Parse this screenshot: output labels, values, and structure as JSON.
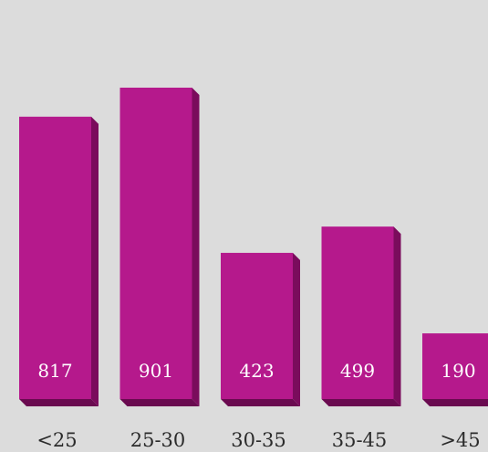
{
  "colors": {
    "background": "#dcdcdc",
    "bar_front": "#b5198c",
    "bar_side": "#7a0c5c",
    "bar_bottom": "#6a0a50",
    "value_text": "#ffffff",
    "label_text": "#2b2b2b"
  },
  "chart_data": {
    "type": "bar",
    "categories": [
      "<25",
      "25-30",
      "30-35",
      "35-45",
      ">45"
    ],
    "values": [
      817,
      901,
      423,
      499,
      190
    ],
    "value_labels": [
      "817",
      "901",
      "423",
      "499",
      "190"
    ],
    "title": "",
    "xlabel": "",
    "ylabel": "",
    "ylim": [
      0,
      1000
    ],
    "grid": false,
    "legend": "none",
    "style": "3d-bar"
  }
}
